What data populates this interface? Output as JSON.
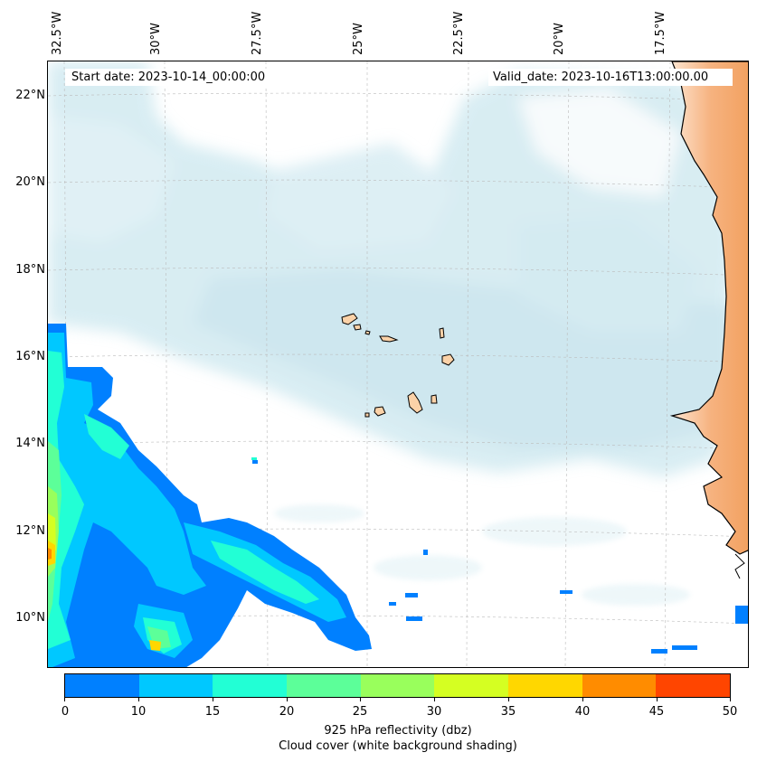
{
  "map": {
    "start_date": "Start date: 2023-10-14_00:00:00",
    "valid_date": "Valid_date: 2023-10-16T13:00:00.00",
    "lon_labels": [
      "32.5°W",
      "30°W",
      "27.5°W",
      "25°W",
      "22.5°W",
      "20°W",
      "17.5°W"
    ],
    "lat_labels": [
      "22°N",
      "20°N",
      "18°N",
      "16°N",
      "14°N",
      "12°N",
      "10°N"
    ],
    "extent": {
      "lon_min": -32.6,
      "lon_max": -15.0,
      "lat_min": 8.9,
      "lat_max": 22.8
    },
    "colors": {
      "land": "#f4a460",
      "cloud": "#add8e6",
      "coastline": "#000000"
    }
  },
  "colorbar": {
    "ticks": [
      "0",
      "10",
      "15",
      "20",
      "25",
      "30",
      "35",
      "40",
      "45",
      "50"
    ],
    "colors": [
      "#0080ff",
      "#00c8ff",
      "#22ffd5",
      "#5cff99",
      "#99ff5c",
      "#d5ff22",
      "#ffd700",
      "#ff8c00",
      "#ff4500"
    ],
    "label_line1": "925 hPa reflectivity (dbz)",
    "label_line2": "Cloud cover (white background shading)"
  }
}
